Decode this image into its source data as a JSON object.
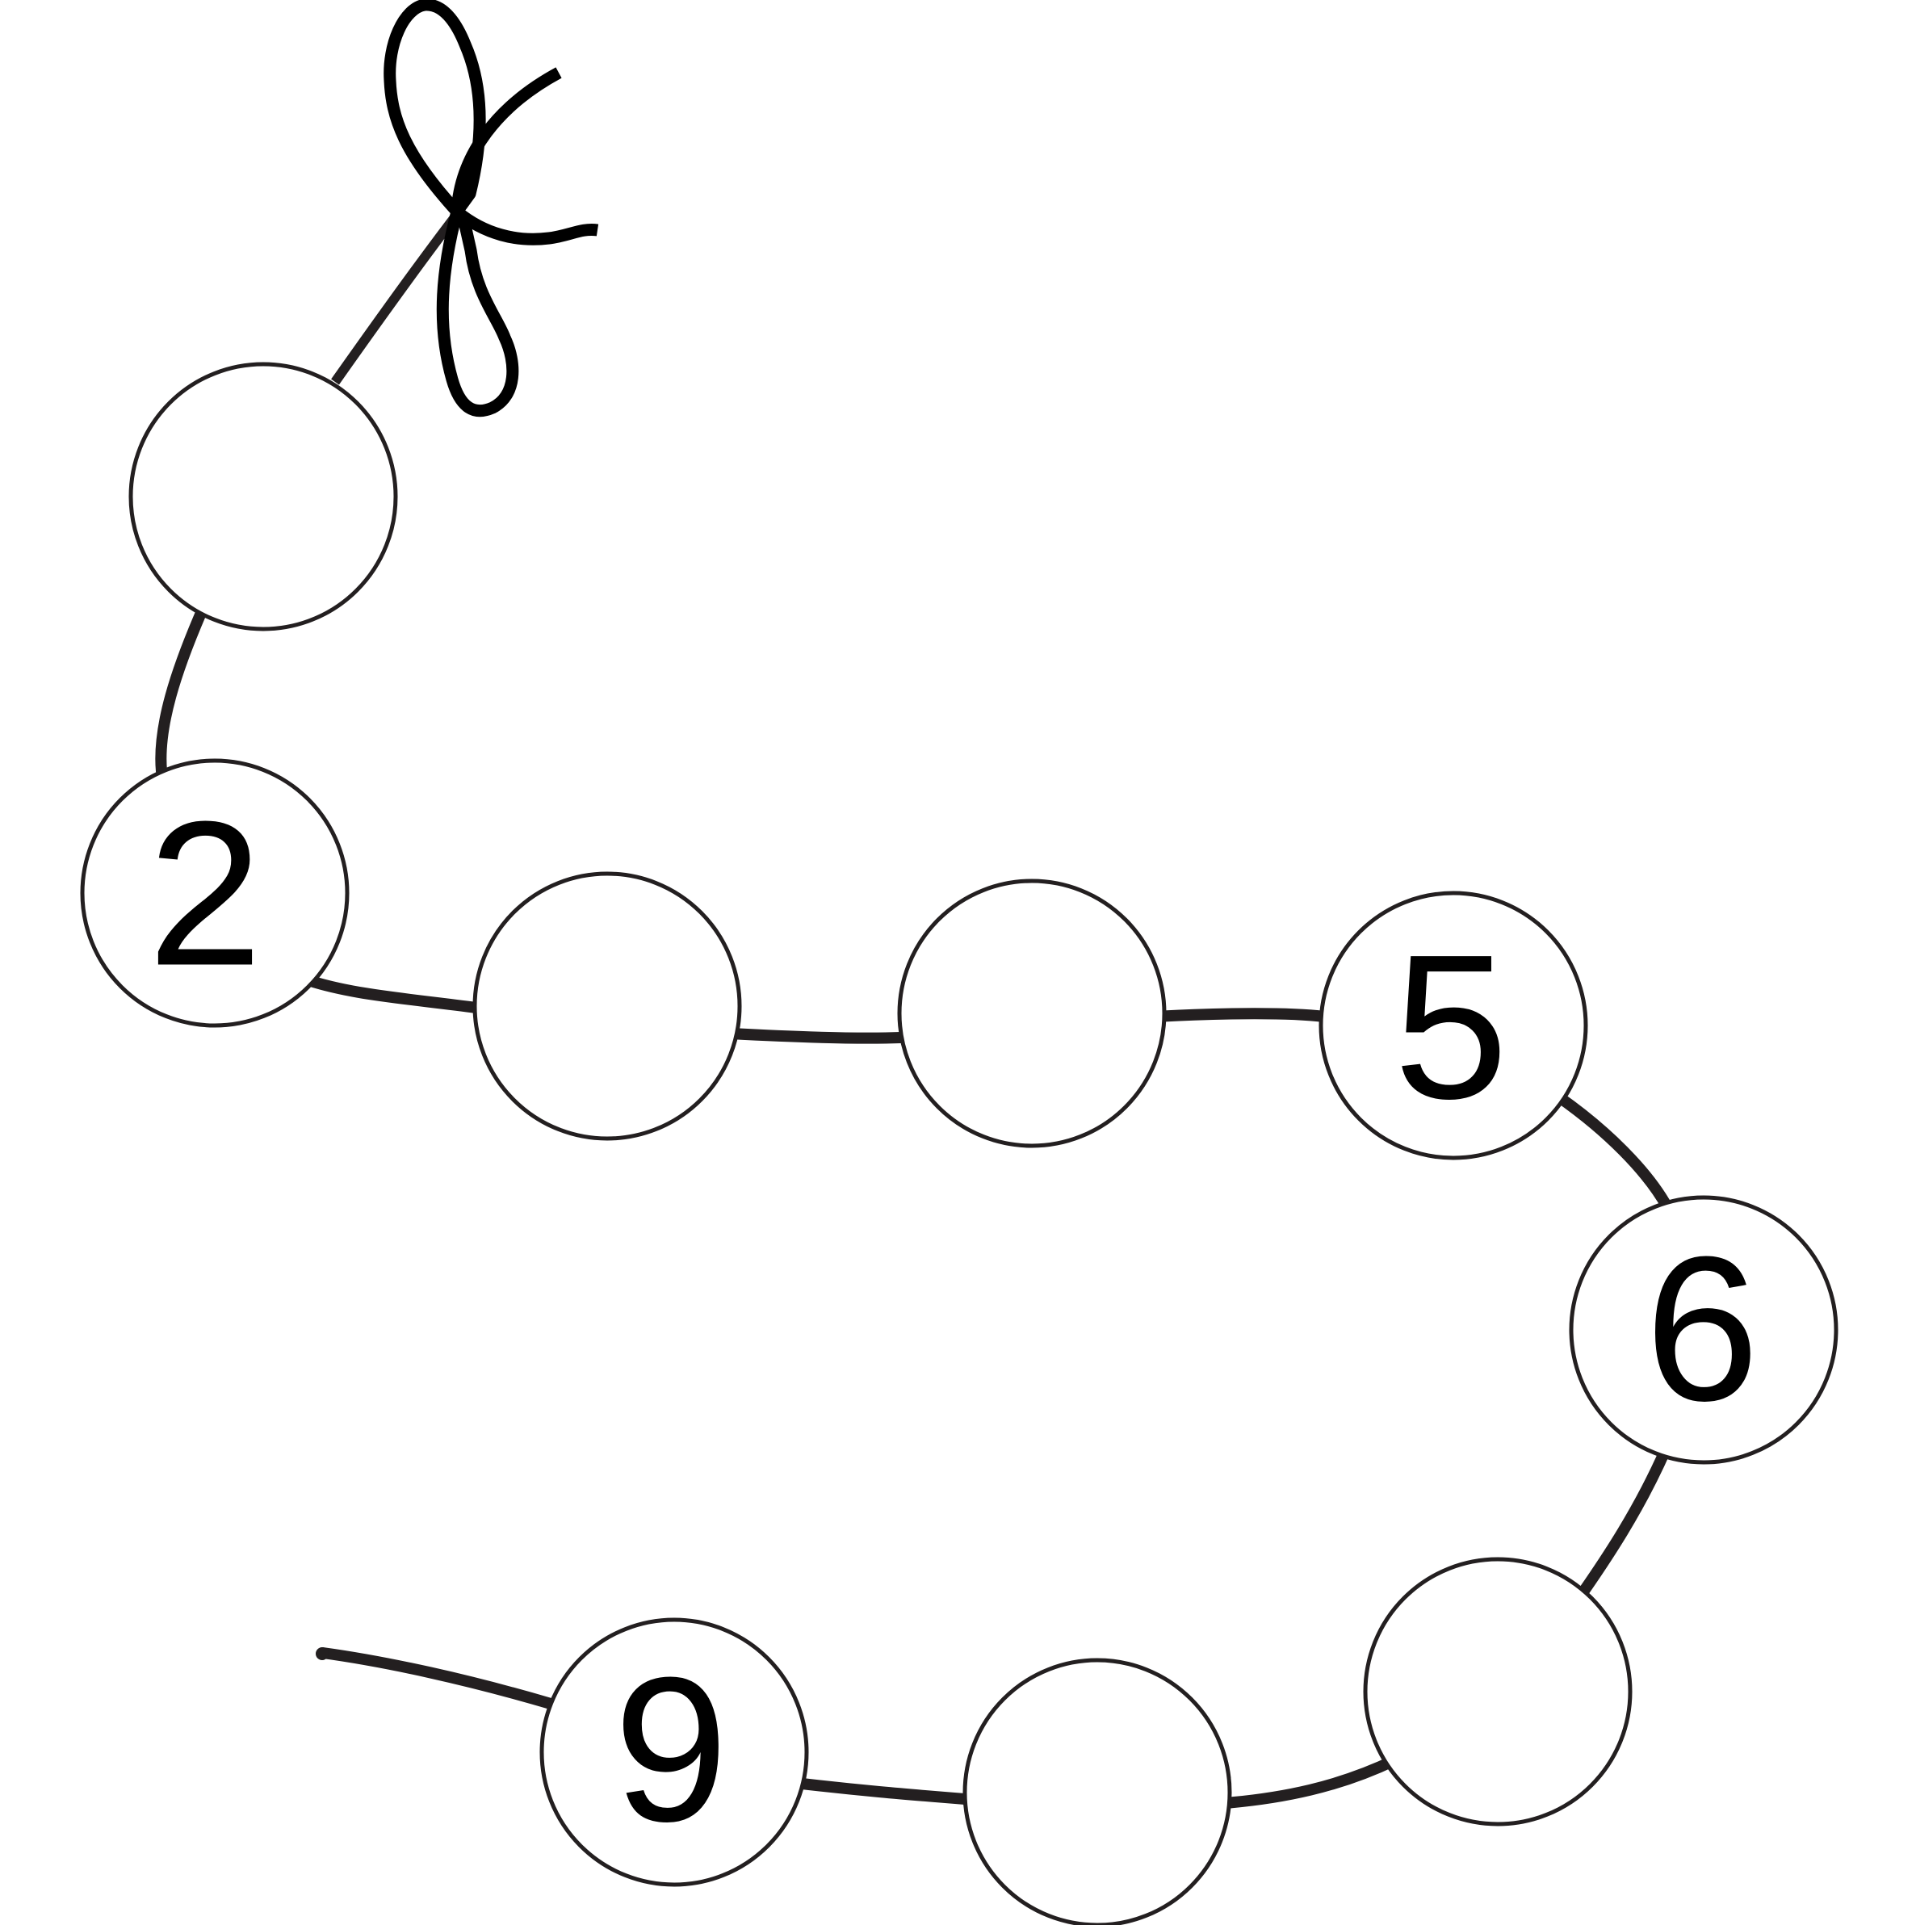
{
  "beads": [
    {
      "id": 1,
      "number": ""
    },
    {
      "id": 2,
      "number": "2"
    },
    {
      "id": 3,
      "number": ""
    },
    {
      "id": 4,
      "number": ""
    },
    {
      "id": 5,
      "number": "5"
    },
    {
      "id": 6,
      "number": "6"
    },
    {
      "id": 7,
      "number": ""
    },
    {
      "id": 8,
      "number": ""
    },
    {
      "id": 9,
      "number": "9"
    }
  ]
}
